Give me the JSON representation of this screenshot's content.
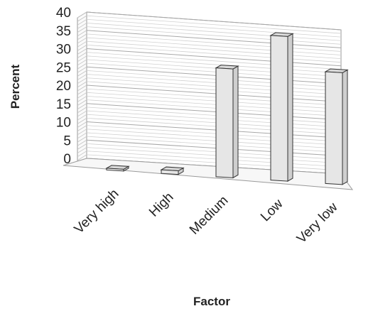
{
  "chart_data": {
    "type": "bar",
    "style": "3d-column",
    "title": "",
    "xlabel": "Factor",
    "ylabel": "Percent",
    "ylim": [
      0,
      40
    ],
    "yticks": [
      0,
      5,
      10,
      15,
      20,
      25,
      30,
      35,
      40
    ],
    "grid": true,
    "legend": "none",
    "categories": [
      "Very high",
      "High",
      "Medium",
      "Low",
      "Very low"
    ],
    "values": [
      0.5,
      1,
      30,
      40,
      31
    ],
    "colors": {
      "bar_front": "#e6e6e6",
      "bar_side": "#cfcfcf",
      "bar_top": "#d9d9d9",
      "grid": "#bdbdbd"
    }
  }
}
